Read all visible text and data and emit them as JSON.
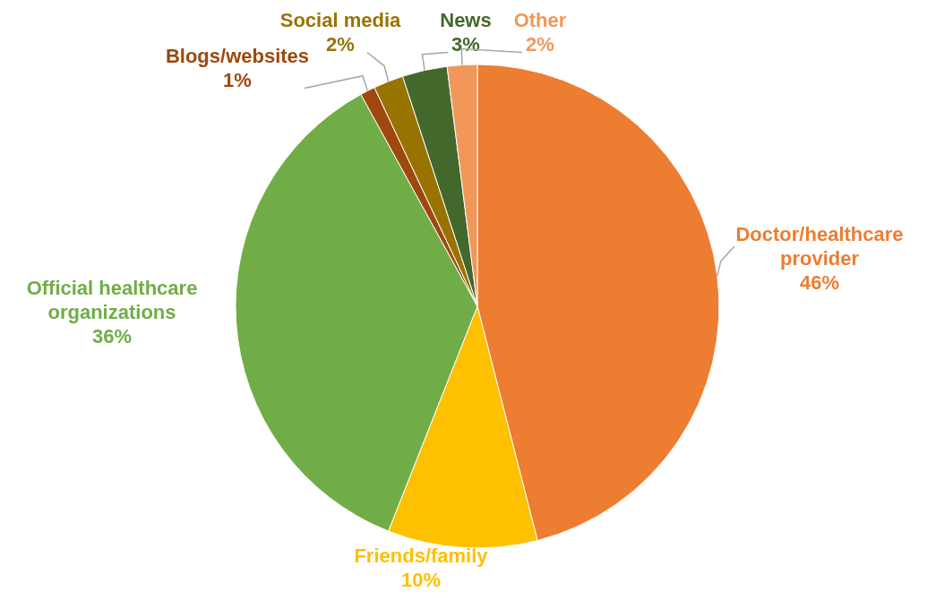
{
  "chart_data": {
    "type": "pie",
    "categories": [
      "Doctor/healthcare provider",
      "Friends/family",
      "Official healthcare organizations",
      "Blogs/websites",
      "Social media",
      "News",
      "Other"
    ],
    "values": [
      46,
      10,
      36,
      1,
      2,
      3,
      2
    ],
    "value_labels": [
      "46%",
      "10%",
      "36%",
      "1%",
      "2%",
      "3%",
      "2%"
    ],
    "colors": [
      "#ed7d31",
      "#ffc000",
      "#70ad47",
      "#9e480e",
      "#997300",
      "#43682b",
      "#f1975a"
    ],
    "legend": false
  }
}
